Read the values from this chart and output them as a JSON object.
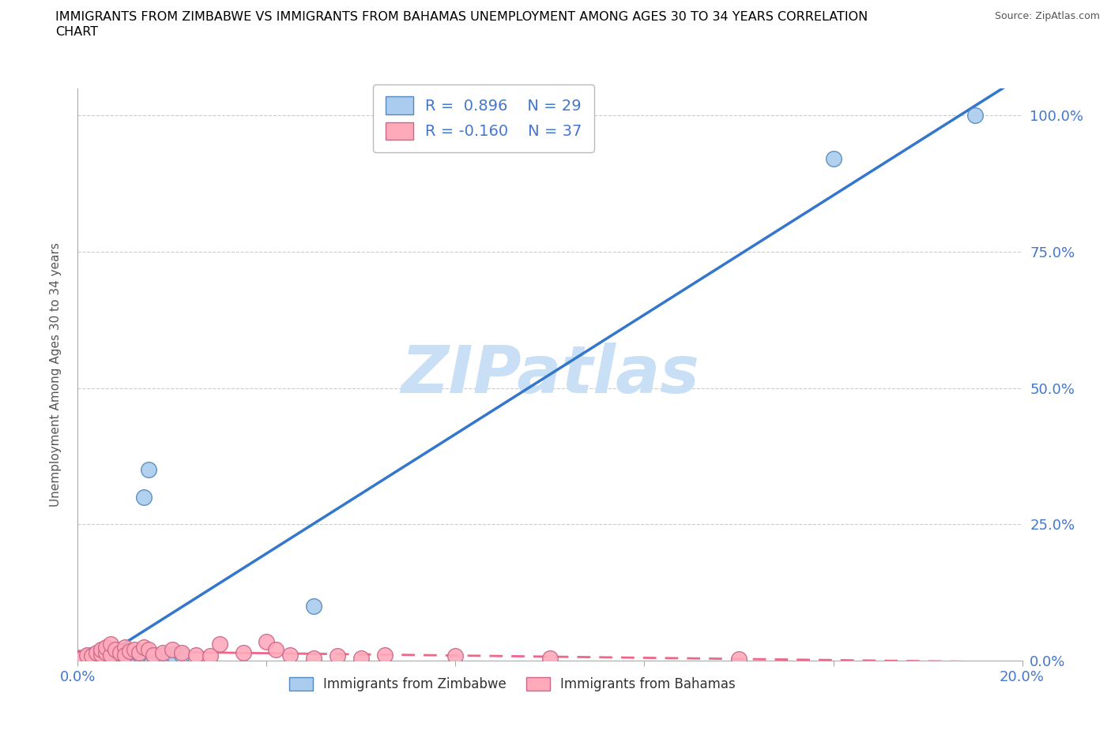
{
  "title_line1": "IMMIGRANTS FROM ZIMBABWE VS IMMIGRANTS FROM BAHAMAS UNEMPLOYMENT AMONG AGES 30 TO 34 YEARS CORRELATION",
  "title_line2": "CHART",
  "source": "Source: ZipAtlas.com",
  "ylabel": "Unemployment Among Ages 30 to 34 years",
  "xlim": [
    0.0,
    0.2
  ],
  "ylim": [
    0.0,
    1.05
  ],
  "xticks": [
    0.0,
    0.04,
    0.08,
    0.12,
    0.16,
    0.2
  ],
  "yticks": [
    0.0,
    0.25,
    0.5,
    0.75,
    1.0
  ],
  "zim_color": "#aaccee",
  "zim_edge": "#5588bb",
  "bah_color": "#ffaabb",
  "bah_edge": "#cc6688",
  "trend_zim_color": "#3377cc",
  "trend_bah_color": "#ee6688",
  "watermark_color": "#c8dff5",
  "legend_R_zim": "R =  0.896",
  "legend_N_zim": "N = 29",
  "legend_R_bah": "R = -0.160",
  "legend_N_bah": "N = 37",
  "tick_color": "#4477cc",
  "zim_x": [
    0.001,
    0.002,
    0.003,
    0.004,
    0.005,
    0.005,
    0.006,
    0.006,
    0.007,
    0.007,
    0.007,
    0.008,
    0.008,
    0.009,
    0.009,
    0.01,
    0.01,
    0.011,
    0.012,
    0.013,
    0.014,
    0.015,
    0.016,
    0.018,
    0.02,
    0.022,
    0.05,
    0.16,
    0.19
  ],
  "zim_y": [
    0.005,
    0.008,
    0.01,
    0.005,
    0.012,
    0.005,
    0.008,
    0.015,
    0.01,
    0.005,
    0.008,
    0.012,
    0.01,
    0.008,
    0.015,
    0.01,
    0.012,
    0.008,
    0.01,
    0.012,
    0.3,
    0.35,
    0.01,
    0.01,
    0.012,
    0.01,
    0.1,
    0.92,
    1.0
  ],
  "bah_x": [
    0.001,
    0.002,
    0.003,
    0.004,
    0.005,
    0.005,
    0.006,
    0.006,
    0.007,
    0.007,
    0.008,
    0.009,
    0.01,
    0.01,
    0.011,
    0.012,
    0.013,
    0.014,
    0.015,
    0.016,
    0.018,
    0.02,
    0.022,
    0.025,
    0.028,
    0.03,
    0.035,
    0.04,
    0.042,
    0.045,
    0.05,
    0.055,
    0.06,
    0.065,
    0.08,
    0.1,
    0.14
  ],
  "bah_y": [
    0.005,
    0.01,
    0.008,
    0.015,
    0.012,
    0.02,
    0.015,
    0.025,
    0.01,
    0.03,
    0.02,
    0.015,
    0.025,
    0.01,
    0.018,
    0.02,
    0.015,
    0.025,
    0.02,
    0.01,
    0.015,
    0.02,
    0.015,
    0.01,
    0.008,
    0.03,
    0.015,
    0.035,
    0.02,
    0.01,
    0.005,
    0.008,
    0.005,
    0.01,
    0.008,
    0.005,
    0.003
  ]
}
